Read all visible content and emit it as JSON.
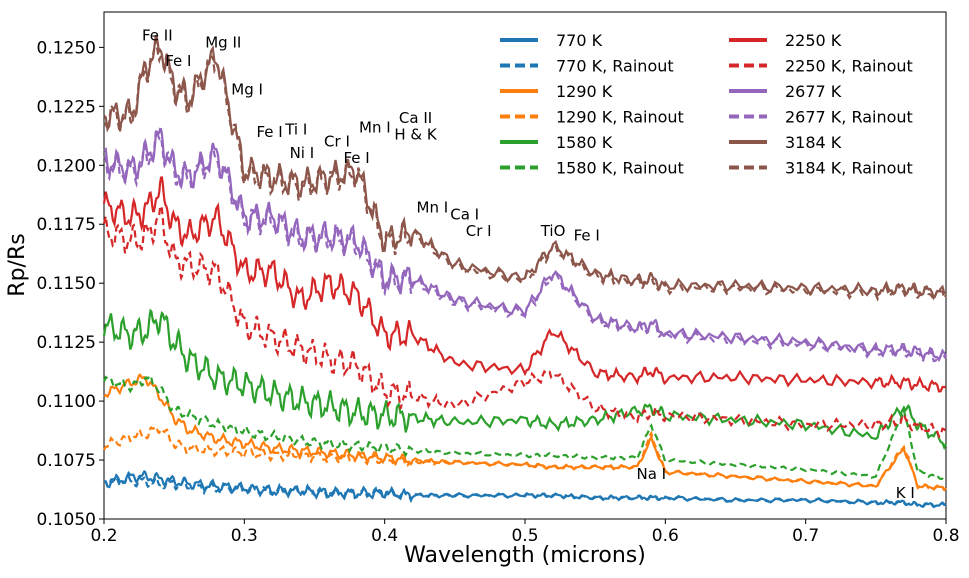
{
  "chart_data": {
    "type": "line",
    "title": "",
    "xlabel": "Wavelength (microns)",
    "ylabel": "Rp/Rs",
    "xlim": [
      0.2,
      0.8
    ],
    "ylim": [
      0.105,
      0.1265
    ],
    "xticks": [
      0.2,
      0.3,
      0.4,
      0.5,
      0.6,
      0.7,
      0.8
    ],
    "xtick_labels": [
      "0.2",
      "0.3",
      "0.4",
      "0.5",
      "0.6",
      "0.7",
      "0.8"
    ],
    "yticks": [
      0.105,
      0.1075,
      0.11,
      0.1125,
      0.115,
      0.1175,
      0.12,
      0.1225,
      0.125
    ],
    "ytick_labels": [
      "0.1050",
      "0.1075",
      "0.1100",
      "0.1125",
      "0.1150",
      "0.1175",
      "0.1200",
      "0.1225",
      "0.1250"
    ],
    "legend": {
      "placement": "top-right",
      "columns": 2
    },
    "x": [
      0.2,
      0.22,
      0.23,
      0.24,
      0.25,
      0.26,
      0.28,
      0.3,
      0.32,
      0.34,
      0.36,
      0.38,
      0.4,
      0.42,
      0.45,
      0.5,
      0.52,
      0.55,
      0.58,
      0.59,
      0.6,
      0.65,
      0.7,
      0.75,
      0.77,
      0.78,
      0.8
    ],
    "series": [
      {
        "name": "770 K",
        "color": "#1f77b4",
        "dash": "solid",
        "values": [
          0.1065,
          0.1068,
          0.1068,
          0.1067,
          0.1066,
          0.1065,
          0.1064,
          0.1063,
          0.1062,
          0.1062,
          0.1061,
          0.1061,
          0.1061,
          0.106,
          0.106,
          0.106,
          0.106,
          0.1059,
          0.1059,
          0.1059,
          0.1059,
          0.1058,
          0.1058,
          0.1057,
          0.1057,
          0.1056,
          0.1056
        ]
      },
      {
        "name": "770 K, Rainout",
        "color": "#1f77b4",
        "dash": "dashed",
        "values": [
          0.1066,
          0.1066,
          0.1066,
          0.1065,
          0.1065,
          0.1064,
          0.1063,
          0.1063,
          0.1062,
          0.1062,
          0.1061,
          0.1061,
          0.1061,
          0.106,
          0.106,
          0.106,
          0.106,
          0.1059,
          0.1059,
          0.1059,
          0.1059,
          0.1058,
          0.1058,
          0.1057,
          0.1057,
          0.1056,
          0.1056
        ]
      },
      {
        "name": "1290 K",
        "color": "#ff7f0e",
        "dash": "solid",
        "values": [
          0.1103,
          0.1108,
          0.111,
          0.1102,
          0.1093,
          0.1088,
          0.1084,
          0.1082,
          0.108,
          0.1079,
          0.1078,
          0.1077,
          0.1076,
          0.1075,
          0.1074,
          0.1073,
          0.1072,
          0.1072,
          0.1072,
          0.1084,
          0.107,
          0.1068,
          0.1066,
          0.1064,
          0.108,
          0.1064,
          0.1063
        ]
      },
      {
        "name": "1290 K, Rainout",
        "color": "#ff7f0e",
        "dash": "dashed",
        "values": [
          0.1081,
          0.1085,
          0.1086,
          0.1089,
          0.1082,
          0.108,
          0.1079,
          0.1078,
          0.1077,
          0.1077,
          0.1076,
          0.1076,
          0.1075,
          0.1074,
          0.1074,
          0.1073,
          0.1072,
          0.1072,
          0.1072,
          0.1086,
          0.107,
          0.1068,
          0.1066,
          0.1064,
          0.1081,
          0.1064,
          0.1063
        ]
      },
      {
        "name": "1580 K",
        "color": "#2ca02c",
        "dash": "solid",
        "values": [
          0.1132,
          0.1128,
          0.113,
          0.1136,
          0.1125,
          0.1118,
          0.111,
          0.1107,
          0.1103,
          0.11,
          0.1098,
          0.1095,
          0.1094,
          0.1093,
          0.1091,
          0.1092,
          0.109,
          0.1092,
          0.1096,
          0.1097,
          0.1094,
          0.1092,
          0.109,
          0.1085,
          0.1098,
          0.109,
          0.1082
        ]
      },
      {
        "name": "1580 K, Rainout",
        "color": "#2ca02c",
        "dash": "dashed",
        "values": [
          0.1109,
          0.1106,
          0.111,
          0.1105,
          0.1096,
          0.1094,
          0.109,
          0.1087,
          0.1085,
          0.1083,
          0.1082,
          0.1081,
          0.108,
          0.1079,
          0.1078,
          0.1077,
          0.1077,
          0.1076,
          0.1076,
          0.109,
          0.1075,
          0.1073,
          0.1071,
          0.1068,
          0.1096,
          0.107,
          0.1067
        ]
      },
      {
        "name": "2250 K",
        "color": "#d62728",
        "dash": "solid",
        "values": [
          0.1183,
          0.1178,
          0.1181,
          0.119,
          0.1175,
          0.117,
          0.1178,
          0.1155,
          0.1155,
          0.1143,
          0.115,
          0.1145,
          0.1128,
          0.1128,
          0.1116,
          0.1113,
          0.113,
          0.1112,
          0.111,
          0.1113,
          0.111,
          0.111,
          0.1109,
          0.1108,
          0.1108,
          0.1107,
          0.1106
        ]
      },
      {
        "name": "2250 K, Rainout",
        "color": "#d62728",
        "dash": "dashed",
        "values": [
          0.1172,
          0.1168,
          0.117,
          0.1178,
          0.116,
          0.1158,
          0.1155,
          0.1132,
          0.1127,
          0.1122,
          0.1118,
          0.1115,
          0.1104,
          0.1102,
          0.1098,
          0.1108,
          0.1112,
          0.1097,
          0.1093,
          0.1095,
          0.1094,
          0.1092,
          0.109,
          0.109,
          0.1092,
          0.1089,
          0.1087
        ]
      },
      {
        "name": "2677 K",
        "color": "#9467bd",
        "dash": "solid",
        "values": [
          0.1202,
          0.1198,
          0.1204,
          0.1212,
          0.1198,
          0.1195,
          0.1205,
          0.1178,
          0.1178,
          0.117,
          0.117,
          0.1168,
          0.1152,
          0.1152,
          0.1143,
          0.1138,
          0.1155,
          0.1135,
          0.1131,
          0.1133,
          0.1129,
          0.1127,
          0.1125,
          0.1122,
          0.1122,
          0.1121,
          0.1119
        ]
      },
      {
        "name": "2677 K, Rainout",
        "color": "#9467bd",
        "dash": "dashed",
        "values": [
          0.1201,
          0.1197,
          0.1203,
          0.1211,
          0.1197,
          0.1194,
          0.1204,
          0.1177,
          0.1177,
          0.1169,
          0.1169,
          0.1167,
          0.1151,
          0.1151,
          0.1142,
          0.1137,
          0.1154,
          0.1134,
          0.113,
          0.1132,
          0.1128,
          0.1126,
          0.1124,
          0.1121,
          0.1121,
          0.112,
          0.1118
        ]
      },
      {
        "name": "3184 K",
        "color": "#8c564b",
        "dash": "solid",
        "values": [
          0.1221,
          0.1222,
          0.1242,
          0.1251,
          0.1234,
          0.1228,
          0.1247,
          0.1198,
          0.1195,
          0.1192,
          0.1195,
          0.1198,
          0.1168,
          0.1172,
          0.1158,
          0.1152,
          0.1166,
          0.1154,
          0.1151,
          0.1152,
          0.1149,
          0.1149,
          0.1148,
          0.1147,
          0.1148,
          0.1147,
          0.1146
        ]
      },
      {
        "name": "3184 K, Rainout",
        "color": "#8c564b",
        "dash": "dashed",
        "values": [
          0.122,
          0.1221,
          0.1241,
          0.125,
          0.1233,
          0.1227,
          0.1246,
          0.1197,
          0.1194,
          0.1191,
          0.1194,
          0.1197,
          0.1167,
          0.1171,
          0.1157,
          0.1151,
          0.1165,
          0.1153,
          0.115,
          0.1151,
          0.1148,
          0.1148,
          0.1147,
          0.1146,
          0.1147,
          0.1146,
          0.1145
        ]
      }
    ],
    "annotations": [
      {
        "text": "Fe II",
        "x": 0.238,
        "y": 0.1253
      },
      {
        "text": "Fe I",
        "x": 0.253,
        "y": 0.1242
      },
      {
        "text": "Mg II",
        "x": 0.285,
        "y": 0.125
      },
      {
        "text": "Mg I",
        "x": 0.302,
        "y": 0.123
      },
      {
        "text": "Fe I",
        "x": 0.318,
        "y": 0.1212
      },
      {
        "text": "Ti I",
        "x": 0.337,
        "y": 0.1213
      },
      {
        "text": "Ni I",
        "x": 0.341,
        "y": 0.1203
      },
      {
        "text": "Cr I",
        "x": 0.366,
        "y": 0.1208
      },
      {
        "text": "Fe I",
        "x": 0.38,
        "y": 0.1201
      },
      {
        "text": "Mn I",
        "x": 0.393,
        "y": 0.1214
      },
      {
        "text": "Ca II",
        "x": 0.422,
        "y": 0.1218
      },
      {
        "text": "H & K",
        "x": 0.422,
        "y": 0.1211
      },
      {
        "text": "Mn I",
        "x": 0.434,
        "y": 0.118
      },
      {
        "text": "Ca I",
        "x": 0.457,
        "y": 0.1177
      },
      {
        "text": "Cr I",
        "x": 0.467,
        "y": 0.117
      },
      {
        "text": "TiO",
        "x": 0.52,
        "y": 0.117
      },
      {
        "text": "Fe I",
        "x": 0.544,
        "y": 0.1168
      },
      {
        "text": "Na I",
        "x": 0.59,
        "y": 0.1067
      },
      {
        "text": "K I",
        "x": 0.771,
        "y": 0.1059
      }
    ]
  }
}
